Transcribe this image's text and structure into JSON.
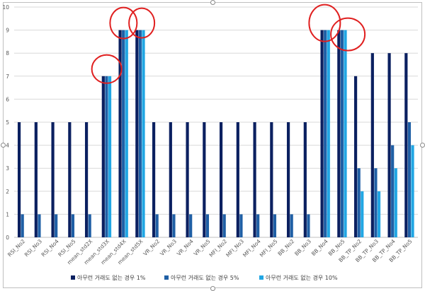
{
  "chart_data": {
    "type": "bar",
    "categories": [
      "RSI_No2",
      "RSI_No3",
      "RSI_No4",
      "RSI_No5",
      "mean_std2X",
      "mean_std3X",
      "mean_std4X",
      "mean_std5X",
      "VR_No2",
      "VR_No3",
      "VR_No4",
      "VR_No5",
      "MFI_No2",
      "MFI_No3",
      "MFI_No4",
      "MFI_No5",
      "BB_No2",
      "BB_No3",
      "BB_No4",
      "BB_No5",
      "BB_TP_No2",
      "BB_TP_No3",
      "BB_TP_No4",
      "BB_TP_No5"
    ],
    "series": [
      {
        "name": "아무런 거래도 없는 경우 1%",
        "color": "#0b2060",
        "values": [
          5,
          5,
          5,
          5,
          5,
          7,
          9,
          9,
          5,
          5,
          5,
          5,
          5,
          5,
          5,
          5,
          5,
          5,
          9,
          9,
          7,
          8,
          8,
          8
        ]
      },
      {
        "name": "아무런 거래도 없는 경우 5%",
        "color": "#1f5fa5",
        "values": [
          1,
          1,
          1,
          1,
          1,
          7,
          9,
          9,
          1,
          1,
          1,
          1,
          1,
          1,
          1,
          1,
          1,
          1,
          9,
          9,
          3,
          3,
          4,
          5
        ]
      },
      {
        "name": "아무런 거래도 없는 경우 10%",
        "color": "#21a6e3",
        "values": [
          0,
          0,
          0,
          0,
          0,
          7,
          9,
          9,
          0,
          0,
          0,
          0,
          0,
          0,
          0,
          0,
          0,
          0,
          9,
          9,
          2,
          2,
          3,
          4
        ]
      }
    ],
    "y_ticks": [
      "0",
      "1",
      "2",
      "3",
      "4",
      "5",
      "6",
      "7",
      "8",
      "9",
      "10"
    ],
    "ylim": [
      0,
      10
    ],
    "grid": true,
    "legend_position": "bottom",
    "annotation_color": "#e02020"
  }
}
